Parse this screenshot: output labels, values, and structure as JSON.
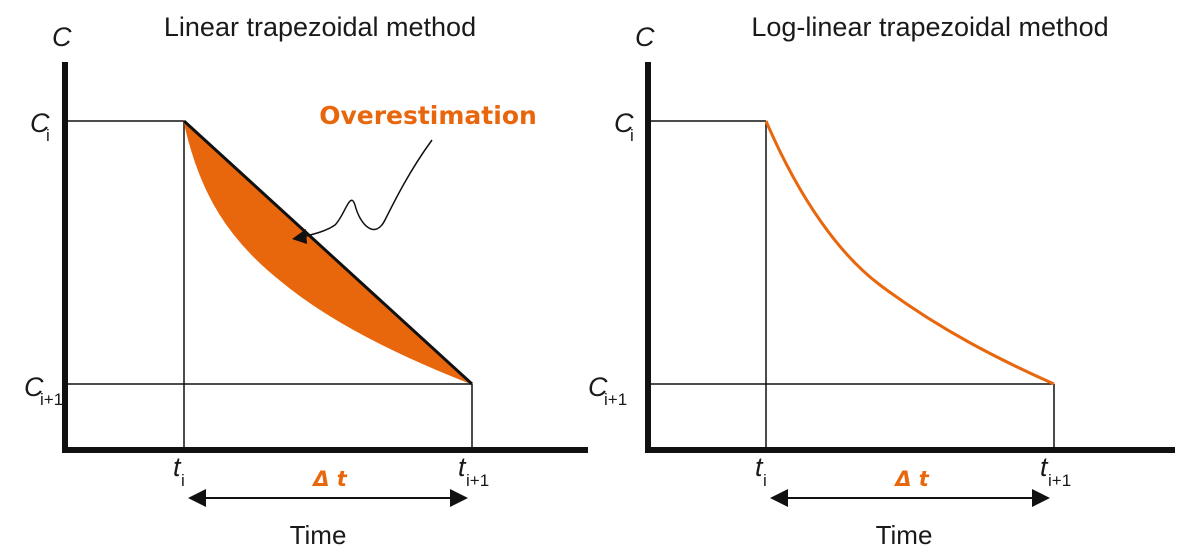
{
  "left_panel": {
    "title": "Linear trapezoidal method",
    "y_axis": "C",
    "c_i": "C",
    "c_i_sub": "i",
    "c_i1": "C",
    "c_i1_sub": "i+1",
    "t_i": "t",
    "t_i_sub": "i",
    "t_i1": "t",
    "t_i1_sub": "i+1",
    "delta_t": "Δ t",
    "x_label": "Time",
    "annotation": "Overestimation"
  },
  "right_panel": {
    "title": "Log-linear trapezoidal method",
    "y_axis": "C",
    "c_i": "C",
    "c_i_sub": "i",
    "c_i1": "C",
    "c_i1_sub": "i+1",
    "t_i": "t",
    "t_i_sub": "i",
    "t_i1": "t",
    "t_i1_sub": "i+1",
    "delta_t": "Δ t",
    "x_label": "Time"
  },
  "colors": {
    "accent": "#e8660c",
    "line": "#111111"
  }
}
